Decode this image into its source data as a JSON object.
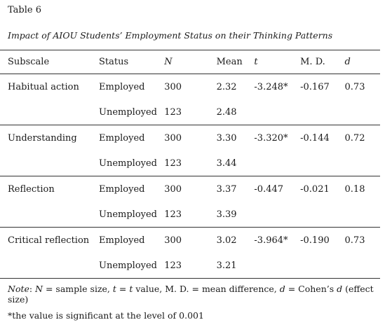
{
  "caption": {
    "label": "Table 6",
    "title": "Impact of AIOU Students’ Employment Status on their Thinking Patterns"
  },
  "table": {
    "headers": {
      "subscale": "Subscale",
      "status": "Status",
      "n": "N",
      "mean": "Mean",
      "t": "t",
      "md": "M. D.",
      "d": "d"
    },
    "groups": [
      {
        "subscale": "Habitual action",
        "t": "-3.248*",
        "md": "-0.167",
        "d": "0.73",
        "rows": [
          {
            "status": "Employed",
            "n": "300",
            "mean": "2.32"
          },
          {
            "status": "Unemployed",
            "n": "123",
            "mean": "2.48"
          }
        ]
      },
      {
        "subscale": "Understanding",
        "t": "-3.320*",
        "md": "-0.144",
        "d": "0.72",
        "rows": [
          {
            "status": "Employed",
            "n": "300",
            "mean": "3.30"
          },
          {
            "status": "Unemployed",
            "n": "123",
            "mean": "3.44"
          }
        ]
      },
      {
        "subscale": "Reflection",
        "t": "-0.447",
        "md": "-0.021",
        "d": "0.18",
        "rows": [
          {
            "status": "Employed",
            "n": "300",
            "mean": "3.37"
          },
          {
            "status": "Unemployed",
            "n": "123",
            "mean": "3.39"
          }
        ]
      },
      {
        "subscale": "Critical reflection",
        "t": "-3.964*",
        "md": "-0.190",
        "d": "0.73",
        "rows": [
          {
            "status": "Employed",
            "n": "300",
            "mean": "3.02"
          },
          {
            "status": "Unemployed",
            "n": "123",
            "mean": "3.21"
          }
        ]
      }
    ]
  },
  "note": {
    "prefix": "Note",
    "colon": ": ",
    "n_sym": "N",
    "n_def": " = sample size, ",
    "t_sym": "t",
    "t_eq": " = ",
    "t_sym2": "t",
    "t_def": " value, M. D. = mean difference, ",
    "d_sym": "d",
    "d_def1": " = Cohen’s ",
    "d_sym2": "d",
    "d_def2": " (effect size)"
  },
  "footnote": "*the value is significant at the level of 0.001"
}
